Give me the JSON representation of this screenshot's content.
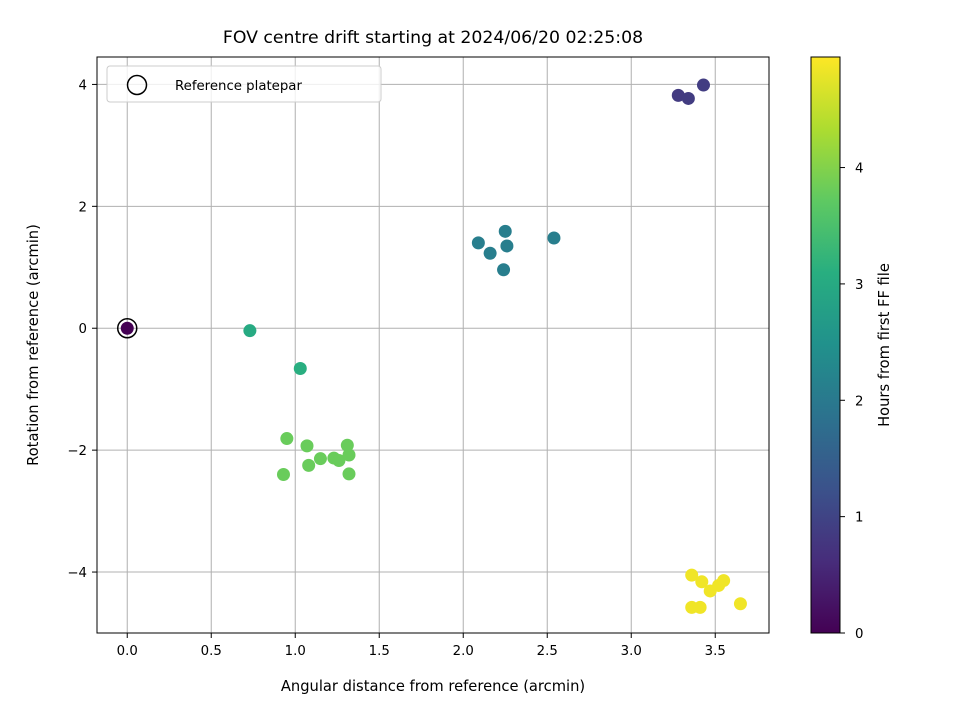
{
  "chart_data": {
    "type": "scatter",
    "title": "FOV centre drift starting at 2024/06/20 02:25:08",
    "xlabel": "Angular distance from reference (arcmin)",
    "ylabel": "Rotation from reference (arcmin)",
    "xlim": [
      -0.18,
      3.82
    ],
    "ylim": [
      -5.0,
      4.45
    ],
    "xticks": [
      0.0,
      0.5,
      1.0,
      1.5,
      2.0,
      2.5,
      3.0,
      3.5
    ],
    "xtick_labels": [
      "0.0",
      "0.5",
      "1.0",
      "1.5",
      "2.0",
      "2.5",
      "3.0",
      "3.5"
    ],
    "yticks": [
      4,
      2,
      0,
      -2,
      -4
    ],
    "ytick_labels": [
      "4",
      "2",
      "0",
      "−2",
      "−4"
    ],
    "grid": true,
    "colormap": "viridis",
    "colorbar": {
      "label": "Hours from first FF file",
      "range": [
        0,
        4.95
      ],
      "ticks": [
        0,
        1,
        2,
        3,
        4
      ],
      "tick_labels": [
        "0",
        "1",
        "2",
        "3",
        "4"
      ]
    },
    "legend": {
      "position": "top-left",
      "entries": [
        {
          "label": "Reference platepar",
          "marker": "open-circle"
        }
      ]
    },
    "reference_point": {
      "x": 0.0,
      "y": 0.0
    },
    "points": [
      {
        "x": 0.0,
        "y": 0.0,
        "hours": 0.0
      },
      {
        "x": 3.28,
        "y": 3.82,
        "hours": 0.85
      },
      {
        "x": 3.34,
        "y": 3.77,
        "hours": 0.87
      },
      {
        "x": 3.43,
        "y": 3.99,
        "hours": 0.89
      },
      {
        "x": 2.09,
        "y": 1.4,
        "hours": 2.1
      },
      {
        "x": 2.16,
        "y": 1.23,
        "hours": 2.1
      },
      {
        "x": 2.25,
        "y": 1.59,
        "hours": 2.1
      },
      {
        "x": 2.26,
        "y": 1.35,
        "hours": 2.1
      },
      {
        "x": 2.24,
        "y": 0.96,
        "hours": 2.1
      },
      {
        "x": 2.54,
        "y": 1.48,
        "hours": 2.1
      },
      {
        "x": 0.73,
        "y": -0.04,
        "hours": 3.0
      },
      {
        "x": 1.03,
        "y": -0.66,
        "hours": 3.1
      },
      {
        "x": 0.95,
        "y": -1.81,
        "hours": 3.8
      },
      {
        "x": 1.07,
        "y": -1.93,
        "hours": 3.8
      },
      {
        "x": 1.31,
        "y": -1.92,
        "hours": 3.8
      },
      {
        "x": 1.15,
        "y": -2.14,
        "hours": 3.8
      },
      {
        "x": 1.23,
        "y": -2.13,
        "hours": 3.8
      },
      {
        "x": 1.26,
        "y": -2.17,
        "hours": 3.8
      },
      {
        "x": 1.32,
        "y": -2.08,
        "hours": 3.8
      },
      {
        "x": 1.08,
        "y": -2.25,
        "hours": 3.8
      },
      {
        "x": 0.93,
        "y": -2.4,
        "hours": 3.8
      },
      {
        "x": 1.32,
        "y": -2.39,
        "hours": 3.8
      },
      {
        "x": 3.36,
        "y": -4.05,
        "hours": 4.85
      },
      {
        "x": 3.42,
        "y": -4.16,
        "hours": 4.85
      },
      {
        "x": 3.47,
        "y": -4.31,
        "hours": 4.85
      },
      {
        "x": 3.52,
        "y": -4.22,
        "hours": 4.85
      },
      {
        "x": 3.55,
        "y": -4.14,
        "hours": 4.85
      },
      {
        "x": 3.36,
        "y": -4.58,
        "hours": 4.85
      },
      {
        "x": 3.41,
        "y": -4.58,
        "hours": 4.85
      },
      {
        "x": 3.65,
        "y": -4.52,
        "hours": 4.85
      }
    ]
  }
}
